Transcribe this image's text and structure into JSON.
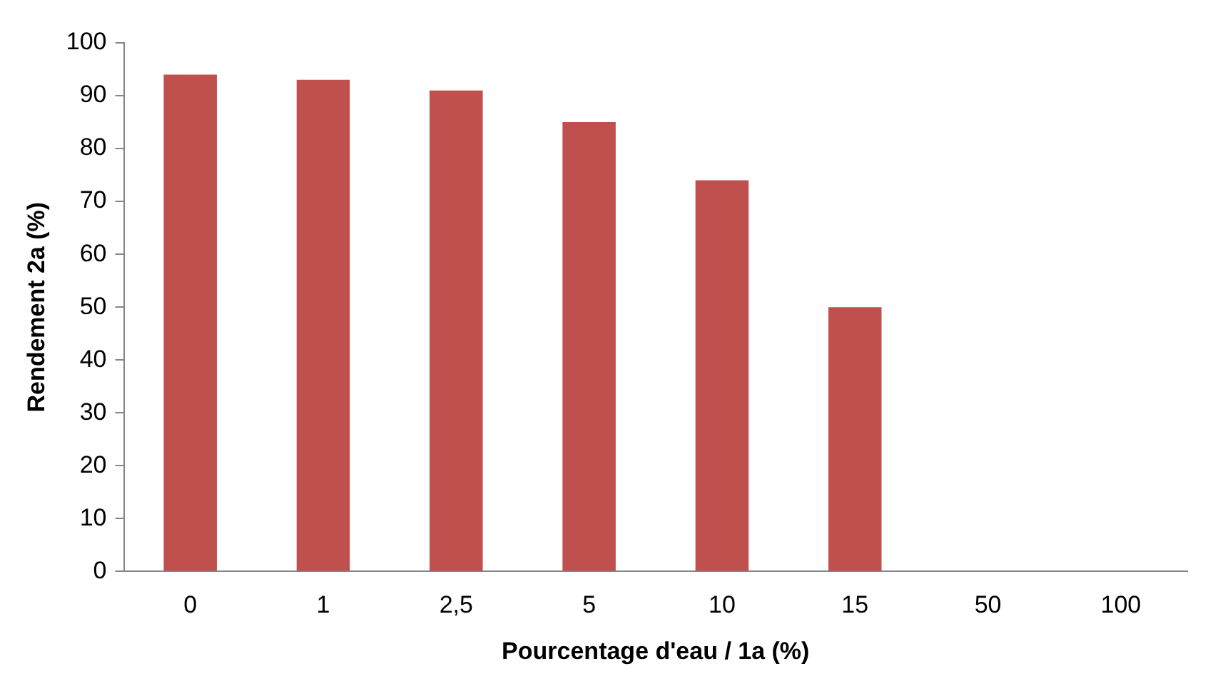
{
  "chart_data": {
    "type": "bar",
    "xlabel": "Pourcentage d'eau / 1a (%)",
    "ylabel": "Rendement 2a (%)",
    "categories": [
      "0",
      "1",
      "2,5",
      "5",
      "10",
      "15",
      "50",
      "100"
    ],
    "values": [
      94,
      93,
      91,
      85,
      74,
      50,
      0,
      0
    ],
    "color": "#c0504d",
    "ylim": [
      0,
      100
    ],
    "yticks": [
      0,
      10,
      20,
      30,
      40,
      50,
      60,
      70,
      80,
      90,
      100
    ],
    "grid": false,
    "legend": false
  }
}
